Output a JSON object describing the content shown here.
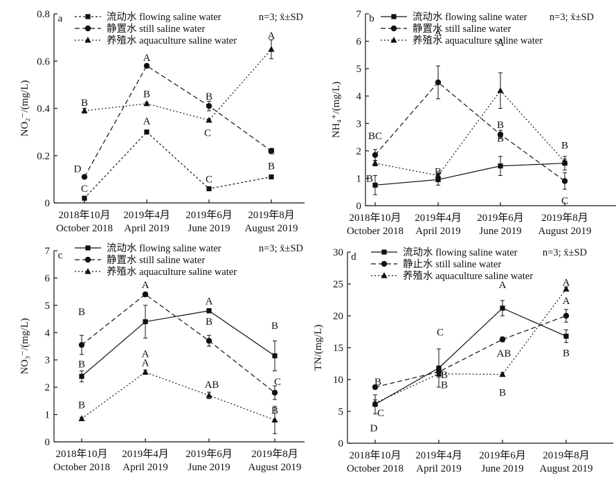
{
  "chart_data": [
    {
      "type": "line",
      "panel": "a",
      "ylabel": "NO₂⁻/(mg/L)",
      "ylim": [
        0,
        0.8
      ],
      "yticks": [
        "0",
        "0.2",
        "0.4",
        "0.6",
        "0.8"
      ],
      "categories": [
        {
          "cn": "2018年10月",
          "en": "October 2018"
        },
        {
          "cn": "2019年4月",
          "en": "April 2019"
        },
        {
          "cn": "2019年6月",
          "en": "June 2019"
        },
        {
          "cn": "2019年8月",
          "en": "August 2019"
        }
      ],
      "note": "n=3; x̄±SD",
      "series": [
        {
          "name": "流动水 flowing saline water",
          "marker": "square",
          "dash": "3,3",
          "values": [
            0.02,
            0.3,
            0.06,
            0.11
          ],
          "errors": [
            0.005,
            0.005,
            0.005,
            0.005
          ],
          "letters": [
            "C",
            "A",
            "C",
            "B"
          ]
        },
        {
          "name": "静置水 still saline water",
          "marker": "circle",
          "dash": "7,4",
          "values": [
            0.11,
            0.58,
            0.41,
            0.22
          ],
          "errors": [
            0.008,
            0.008,
            0.02,
            0.008
          ],
          "letters": [
            "D",
            "A",
            "B",
            "C"
          ]
        },
        {
          "name": "养殖水 aquaculture saline water",
          "marker": "triangle",
          "dash": "2,3",
          "values": [
            0.39,
            0.42,
            0.35,
            0.65
          ],
          "errors": [
            0.01,
            0.005,
            0.005,
            0.04
          ],
          "letters": [
            "B",
            "B",
            "C",
            "A"
          ]
        }
      ]
    },
    {
      "type": "line",
      "panel": "b",
      "ylabel": "NH₄⁺/(mg/L)",
      "ylim": [
        0,
        7
      ],
      "yticks": [
        "0",
        "1",
        "2",
        "3",
        "4",
        "5",
        "6",
        "7"
      ],
      "categories": [
        {
          "cn": "2018年10月",
          "en": "October 2018"
        },
        {
          "cn": "2019年4月",
          "en": "April 2019"
        },
        {
          "cn": "2019年6月",
          "en": "June 2019"
        },
        {
          "cn": "2019年8月",
          "en": "August 2019"
        }
      ],
      "note": "n=3; x̄±SD",
      "series": [
        {
          "name": "流动水 flowing saline water",
          "marker": "square",
          "dash": "",
          "values": [
            0.75,
            0.95,
            1.45,
            1.55
          ],
          "errors": [
            0.35,
            0.2,
            0.35,
            0.25
          ],
          "letters": [
            "B",
            "B",
            "B",
            "B"
          ]
        },
        {
          "name": "静置水 still saline water",
          "marker": "circle",
          "dash": "7,4",
          "values": [
            1.85,
            4.5,
            2.6,
            0.9
          ],
          "errors": [
            0.2,
            0.6,
            0.15,
            0.3
          ],
          "letters": [
            "BC",
            "A",
            "B",
            "C"
          ]
        },
        {
          "name": "养殖水 aquaculture saline water",
          "marker": "triangle",
          "dash": "2,3",
          "values": [
            1.55,
            1.1,
            4.2,
            1.6
          ],
          "errors": [
            0.1,
            0.1,
            0.65,
            0.1
          ],
          "letters": [
            "",
            "",
            "A",
            ""
          ]
        }
      ]
    },
    {
      "type": "line",
      "panel": "c",
      "ylabel": "NO₃⁻/(mg/L)",
      "ylim": [
        0,
        7
      ],
      "yticks": [
        "0",
        "1",
        "2",
        "3",
        "4",
        "5",
        "6",
        "7"
      ],
      "categories": [
        {
          "cn": "2018年10月",
          "en": "October 2018"
        },
        {
          "cn": "2019年4月",
          "en": "April 2019"
        },
        {
          "cn": "2019年6月",
          "en": "June 2019"
        },
        {
          "cn": "2019年8月",
          "en": "August 2019"
        }
      ],
      "note": "n=3; x̄±SD",
      "series": [
        {
          "name": "流动水 flowing saline water",
          "marker": "square",
          "dash": "",
          "values": [
            2.4,
            4.4,
            4.8,
            3.15
          ],
          "errors": [
            0.2,
            0.6,
            0.08,
            0.55
          ],
          "letters": [
            "B",
            "A",
            "A",
            "B"
          ]
        },
        {
          "name": "静置水 still saline water",
          "marker": "circle",
          "dash": "7,4",
          "values": [
            3.55,
            5.4,
            3.7,
            1.8
          ],
          "errors": [
            0.35,
            0.08,
            0.2,
            0.25
          ],
          "letters": [
            "B",
            "A",
            "B",
            "C"
          ]
        },
        {
          "name": "养殖水 aquaculture saline water",
          "marker": "triangle",
          "dash": "2,3",
          "values": [
            0.85,
            2.55,
            1.7,
            0.8
          ],
          "errors": [
            0.05,
            0.08,
            0.12,
            0.5
          ],
          "letters": [
            "B",
            "A",
            "AB",
            "B"
          ]
        }
      ]
    },
    {
      "type": "line",
      "panel": "d",
      "ylabel": "TN/(mg/L)",
      "ylim": [
        0,
        30
      ],
      "yticks": [
        "0",
        "5",
        "10",
        "15",
        "20",
        "25",
        "30"
      ],
      "categories": [
        {
          "cn": "2018年10月",
          "en": "October 2018"
        },
        {
          "cn": "2019年4月",
          "en": "April 2019"
        },
        {
          "cn": "2019年6月",
          "en": "June 2019"
        },
        {
          "cn": "2019年8月",
          "en": "August 2019"
        }
      ],
      "note": "n=3; x̄±SD",
      "series": [
        {
          "name": "流动水 flowing saline water",
          "marker": "square",
          "dash": "",
          "values": [
            6.1,
            11.8,
            21.2,
            16.8
          ],
          "errors": [
            1.5,
            3.0,
            1.2,
            1.0
          ],
          "letters": [
            "D",
            "C",
            "A",
            "B"
          ]
        },
        {
          "name": "静止水 still saline water",
          "marker": "circle",
          "dash": "7,4",
          "values": [
            8.8,
            11.2,
            16.3,
            20.0
          ],
          "errors": [
            0.3,
            0.5,
            0.4,
            1.0
          ],
          "letters": [
            "B",
            "B",
            "AB",
            "A"
          ]
        },
        {
          "name": "养殖水 aquaculture saline water",
          "marker": "triangle",
          "dash": "2,3",
          "values": [
            6.3,
            10.9,
            10.8,
            24.2
          ],
          "errors": [
            0.5,
            0.5,
            0.3,
            0.3
          ],
          "letters": [
            "C",
            "B",
            "B",
            "A"
          ]
        }
      ]
    }
  ]
}
